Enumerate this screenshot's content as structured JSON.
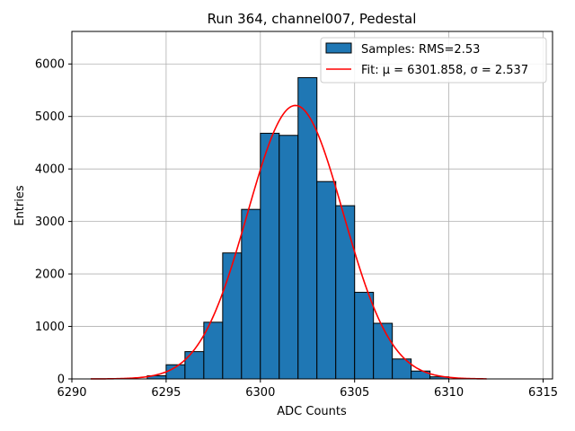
{
  "chart_data": {
    "type": "bar",
    "title": "Run 364, channel007, Pedestal",
    "xlabel": "ADC Counts",
    "ylabel": "Entries",
    "xlim": [
      6290,
      6315.5
    ],
    "ylim": [
      0,
      6620
    ],
    "x_ticks": [
      6290,
      6295,
      6300,
      6305,
      6310,
      6315
    ],
    "y_ticks": [
      0,
      1000,
      2000,
      3000,
      4000,
      5000,
      6000
    ],
    "grid": true,
    "bin_width": 1,
    "bins": [
      {
        "left": 6294,
        "count": 60
      },
      {
        "left": 6295,
        "count": 270
      },
      {
        "left": 6296,
        "count": 520
      },
      {
        "left": 6297,
        "count": 1080
      },
      {
        "left": 6298,
        "count": 2400
      },
      {
        "left": 6299,
        "count": 3230
      },
      {
        "left": 6300,
        "count": 4680
      },
      {
        "left": 6301,
        "count": 4640
      },
      {
        "left": 6302,
        "count": 5740
      },
      {
        "left": 6303,
        "count": 3760
      },
      {
        "left": 6304,
        "count": 3300
      },
      {
        "left": 6305,
        "count": 1650
      },
      {
        "left": 6306,
        "count": 1060
      },
      {
        "left": 6307,
        "count": 380
      },
      {
        "left": 6308,
        "count": 150
      },
      {
        "left": 6309,
        "count": 40
      }
    ],
    "fit": {
      "mu": 6301.858,
      "sigma": 2.537,
      "amplitude": 5210,
      "x_range": [
        6291,
        6312
      ]
    },
    "colors": {
      "bars": "#1f77b4",
      "bar_edge": "#000000",
      "fit": "#ff0000",
      "grid": "#b0b0b0"
    },
    "legend": {
      "placement": "top-right",
      "entries": [
        {
          "label": "Samples: RMS=2.53",
          "kind": "patch"
        },
        {
          "label": "Fit: μ = 6301.858, σ = 2.537",
          "kind": "line"
        }
      ]
    }
  }
}
